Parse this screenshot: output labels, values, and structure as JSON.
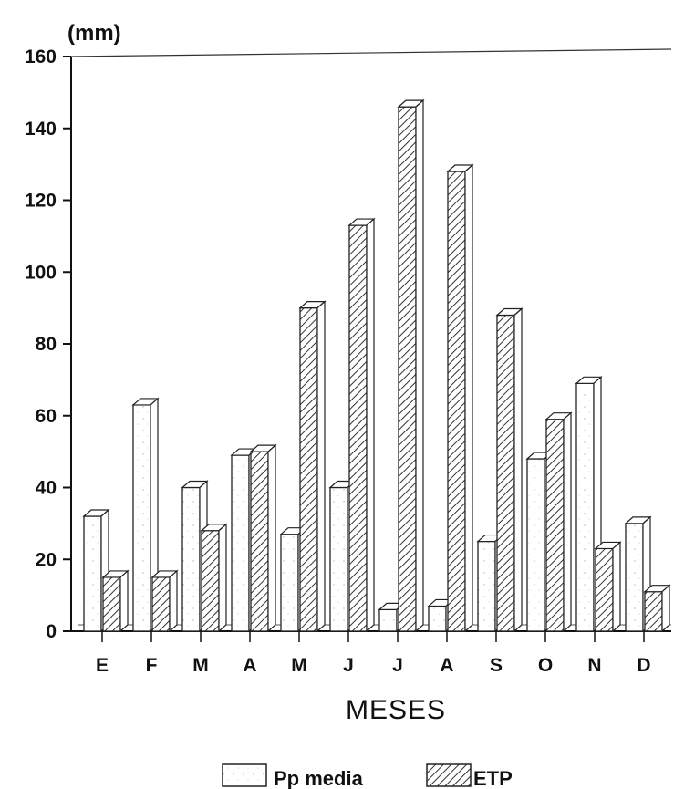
{
  "chart_data": {
    "type": "bar",
    "ylabel": "(mm)",
    "xlabel": "MESES",
    "ylim": [
      0,
      160
    ],
    "yticks": [
      "0",
      "20",
      "40",
      "60",
      "80",
      "100",
      "120",
      "140",
      "160"
    ],
    "categories": [
      "E",
      "F",
      "M",
      "A",
      "M",
      "J",
      "J",
      "A",
      "S",
      "O",
      "N",
      "D"
    ],
    "series": [
      {
        "name": "Pp media",
        "values": [
          32,
          63,
          40,
          49,
          27,
          40,
          6,
          7,
          25,
          48,
          69,
          30
        ]
      },
      {
        "name": "ETP",
        "values": [
          15,
          15,
          28,
          50,
          90,
          113,
          146,
          128,
          88,
          59,
          23,
          11
        ]
      }
    ],
    "legend_position": "bottom",
    "grid": false,
    "style": "3d-bars",
    "colors": {
      "pp_fill": "#ffffff",
      "etp_fill": "#e4e4e4",
      "stroke": "#222222"
    }
  }
}
